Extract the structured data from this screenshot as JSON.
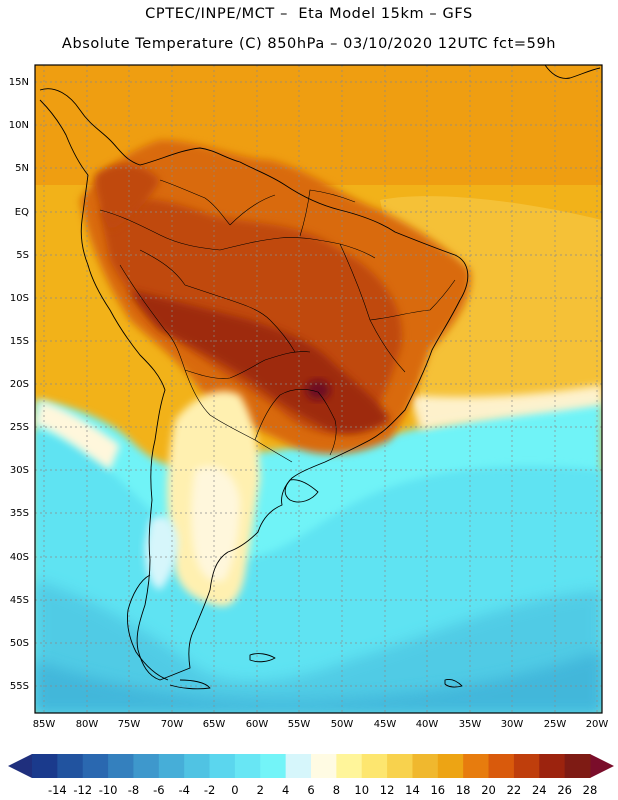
{
  "title": {
    "line1": "CPTEC/INPE/MCT –  Eta Model 15km – GFS",
    "line2": "Absolute Temperature (C) 850hPa – 03/10/2020 12UTC fct=59h"
  },
  "map": {
    "lat_labels": [
      "15N",
      "10N",
      "5N",
      "EQ",
      "5S",
      "10S",
      "15S",
      "20S",
      "25S",
      "30S",
      "35S",
      "40S",
      "45S",
      "50S",
      "55S"
    ],
    "lon_labels": [
      "85W",
      "80W",
      "75W",
      "70W",
      "65W",
      "60W",
      "55W",
      "50W",
      "45W",
      "40W",
      "35W",
      "30W",
      "25W",
      "20W"
    ],
    "regions": [
      {
        "name": "ocean-south-cold",
        "color": "#5fe3f2"
      },
      {
        "name": "ocean-warm",
        "color": "#f2b219"
      },
      {
        "name": "amazon-hot",
        "color": "#cf5a12"
      },
      {
        "name": "central-very-hot",
        "color": "#9e2a10"
      },
      {
        "name": "pampas-cool",
        "color": "#fff7dc"
      }
    ]
  },
  "colorbar": {
    "labels": [
      "-14",
      "-12",
      "-10",
      "-8",
      "-6",
      "-4",
      "-2",
      "0",
      "2",
      "4",
      "6",
      "8",
      "10",
      "12",
      "14",
      "16",
      "18",
      "20",
      "22",
      "24",
      "26",
      "28"
    ],
    "colors": [
      "#1a3a8c",
      "#21539f",
      "#2a68b0",
      "#3480be",
      "#3e98cc",
      "#46aed8",
      "#50c3e3",
      "#5bd6ee",
      "#68e6f4",
      "#73f4f8",
      "#d6f6fb",
      "#fffbe3",
      "#fff59a",
      "#fde66f",
      "#f8d24d",
      "#f0b82e",
      "#eda414",
      "#e77c0e",
      "#d95a0c",
      "#bf3e0c",
      "#9c230e",
      "#7e1b14"
    ],
    "end_low_color": "#1f2f7d",
    "end_high_color": "#7a0d2a"
  }
}
